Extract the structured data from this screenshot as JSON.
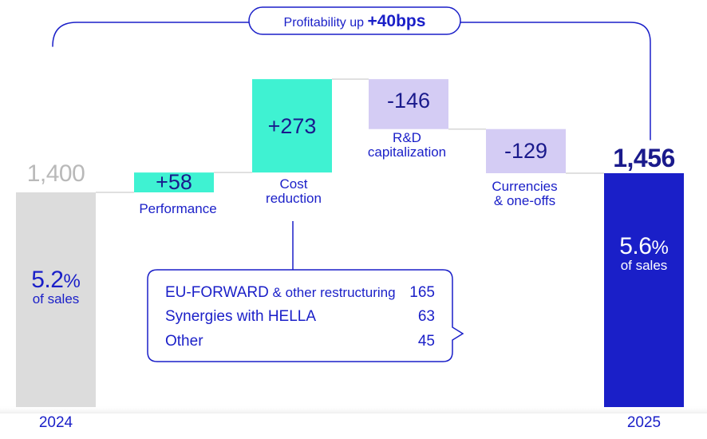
{
  "chart_data": {
    "type": "waterfall",
    "banner": {
      "prefix": "Profitability up",
      "value": "+40bps"
    },
    "start": {
      "year": "2024",
      "value": 1400,
      "value_label": "1,400",
      "margin": "5.2",
      "margin_unit": "%",
      "margin_caption": "of sales"
    },
    "end": {
      "year": "2025",
      "value": 1456,
      "value_label": "1,456",
      "margin": "5.6",
      "margin_unit": "%",
      "margin_caption": "of sales"
    },
    "steps": [
      {
        "label_lines": [
          "Performance"
        ],
        "value": 58,
        "value_label": "+58",
        "color": "#3ff2d2"
      },
      {
        "label_lines": [
          "Cost",
          "reduction"
        ],
        "value": 273,
        "value_label": "+273",
        "color": "#3ff2d2"
      },
      {
        "label_lines": [
          "R&D",
          "capitalization"
        ],
        "value": -146,
        "value_label": "-146",
        "color": "#d4ccf4"
      },
      {
        "label_lines": [
          "Currencies",
          "& one-offs"
        ],
        "value": -129,
        "value_label": "-129",
        "color": "#d4ccf4"
      }
    ],
    "colors": {
      "start_bar": "#dcdcdc",
      "end_bar": "#1a1fc8",
      "text": "#1a1fc8",
      "connector": "#d6d6d6"
    },
    "breakdown": {
      "parent": "Cost reduction",
      "items": [
        {
          "label_main": "EU-FORWARD",
          "label_rest": " & other restructuring",
          "value": "165"
        },
        {
          "label_main": "Synergies with HELLA",
          "label_rest": "",
          "value": "63"
        },
        {
          "label_main": "Other",
          "label_rest": "",
          "value": "45"
        }
      ]
    }
  }
}
